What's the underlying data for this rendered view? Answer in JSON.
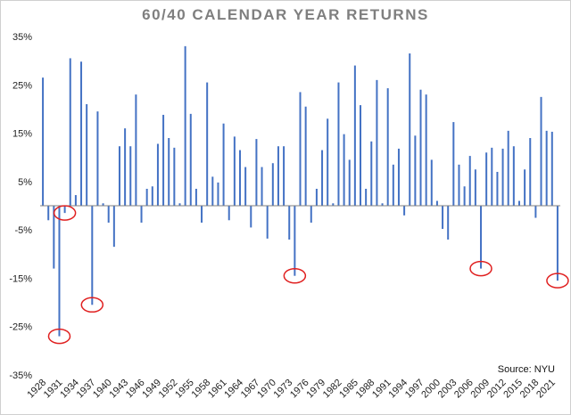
{
  "chart_data": {
    "type": "bar",
    "title": "60/40 CALENDAR YEAR RETURNS",
    "source": "Source: NYU",
    "xlabel": "",
    "ylabel": "",
    "ylim": [
      -35,
      35
    ],
    "y_ticks": [
      35,
      25,
      15,
      5,
      -5,
      -15,
      -25,
      -35
    ],
    "y_tick_labels": [
      "35%",
      "25%",
      "15%",
      "5%",
      "-5%",
      "-15%",
      "-25%",
      "-35%"
    ],
    "x_tick_labels": [
      "1928",
      "1931",
      "1934",
      "1937",
      "1940",
      "1943",
      "1946",
      "1949",
      "1952",
      "1955",
      "1958",
      "1961",
      "1964",
      "1967",
      "1970",
      "1973",
      "1976",
      "1979",
      "1982",
      "1985",
      "1988",
      "1991",
      "1994",
      "1997",
      "2000",
      "2003",
      "2006",
      "2009",
      "2012",
      "2015",
      "2018",
      "2021"
    ],
    "grid": false,
    "bar_color": "#4472c4",
    "circle_color": "#e02020",
    "circled_years": [
      1931,
      1932,
      1937,
      1974,
      2008,
      2022
    ],
    "categories": [
      "1928",
      "1929",
      "1930",
      "1931",
      "1932",
      "1933",
      "1934",
      "1935",
      "1936",
      "1937",
      "1938",
      "1939",
      "1940",
      "1941",
      "1942",
      "1943",
      "1944",
      "1945",
      "1946",
      "1947",
      "1948",
      "1949",
      "1950",
      "1951",
      "1952",
      "1953",
      "1954",
      "1955",
      "1956",
      "1957",
      "1958",
      "1959",
      "1960",
      "1961",
      "1962",
      "1963",
      "1964",
      "1965",
      "1966",
      "1967",
      "1968",
      "1969",
      "1970",
      "1971",
      "1972",
      "1973",
      "1974",
      "1975",
      "1976",
      "1977",
      "1978",
      "1979",
      "1980",
      "1981",
      "1982",
      "1983",
      "1984",
      "1985",
      "1986",
      "1987",
      "1988",
      "1989",
      "1990",
      "1991",
      "1992",
      "1993",
      "1994",
      "1995",
      "1996",
      "1997",
      "1998",
      "1999",
      "2000",
      "2001",
      "2002",
      "2003",
      "2004",
      "2005",
      "2006",
      "2007",
      "2008",
      "2009",
      "2010",
      "2011",
      "2012",
      "2013",
      "2014",
      "2015",
      "2016",
      "2017",
      "2018",
      "2019",
      "2020",
      "2021",
      "2022"
    ],
    "values": [
      26.5,
      -3.0,
      -13.0,
      -27.0,
      -1.5,
      30.5,
      2.2,
      29.8,
      21.0,
      -20.5,
      19.5,
      0.5,
      -3.5,
      -8.5,
      12.3,
      16.0,
      12.3,
      23.0,
      -3.5,
      3.5,
      4.0,
      12.8,
      18.8,
      14.0,
      12.0,
      0.5,
      33.0,
      19.0,
      3.5,
      -3.5,
      25.5,
      6.0,
      4.8,
      17.0,
      -3.0,
      14.3,
      11.5,
      8.0,
      -4.5,
      13.8,
      8.0,
      -6.8,
      8.8,
      12.3,
      12.3,
      -7.0,
      -14.5,
      23.5,
      20.5,
      -3.5,
      3.5,
      11.5,
      18.0,
      0.5,
      25.5,
      14.8,
      9.5,
      29.0,
      20.8,
      3.5,
      13.3,
      26.0,
      0.5,
      24.3,
      8.5,
      11.8,
      -2.0,
      31.5,
      14.5,
      24.0,
      23.0,
      9.5,
      1.0,
      -4.8,
      -7.0,
      17.3,
      8.5,
      4.0,
      10.3,
      7.5,
      -13.0,
      11.0,
      12.0,
      7.0,
      11.8,
      15.5,
      12.3,
      1.0,
      7.5,
      14.0,
      -2.5,
      22.5,
      15.5,
      15.3,
      -15.5
    ]
  }
}
